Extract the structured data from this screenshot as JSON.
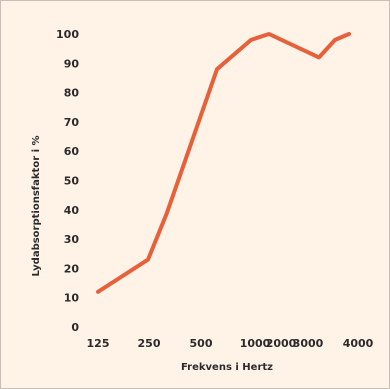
{
  "chart_data": {
    "type": "line",
    "xlabel": "Frekvens i Hertz",
    "ylabel": "Lydabsorptionsfaktor i %",
    "x_ticks": [
      "125",
      "250",
      "500",
      "1000",
      "2000",
      "3000",
      "4000"
    ],
    "y_ticks": [
      "0",
      "10",
      "20",
      "30",
      "40",
      "50",
      "60",
      "70",
      "80",
      "90",
      "100"
    ],
    "ylim": [
      0,
      100
    ],
    "grid": false,
    "line_color": "#e8603a",
    "series": [
      {
        "x": [
          125,
          250,
          350,
          500,
          1000,
          1250,
          3000,
          3500,
          4000
        ],
        "values": [
          12,
          23,
          39,
          88,
          98,
          100,
          92,
          98,
          100
        ]
      }
    ]
  }
}
